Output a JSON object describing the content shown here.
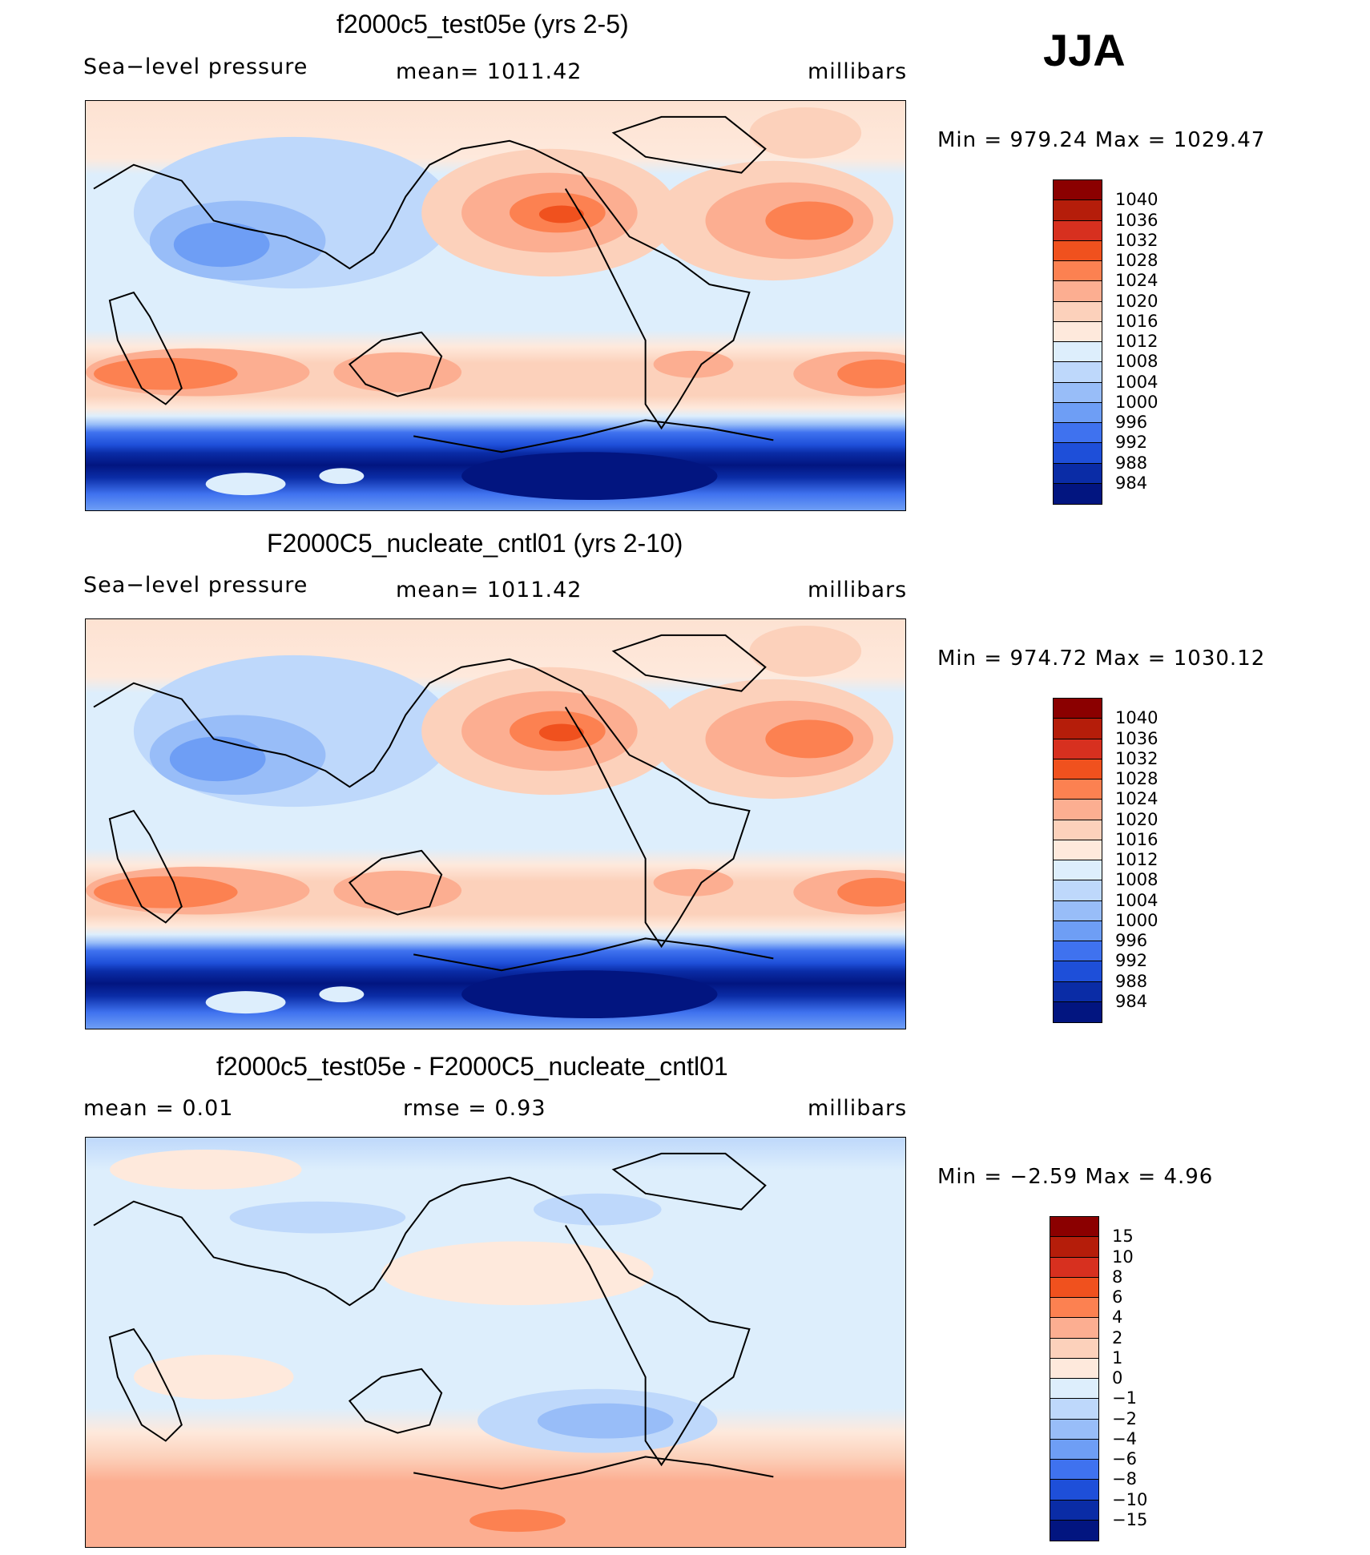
{
  "season": "JJA",
  "panels": [
    {
      "id": "test",
      "title": "f2000c5_test05e (yrs 2-5)",
      "left_label": "Sea−level pressure",
      "center_label": "mean=  1011.42",
      "units": "millibars",
      "minmax": "Min  =  979.24  Max  =  1029.47"
    },
    {
      "id": "control",
      "title": "F2000C5_nucleate_cntl01 (yrs 2-10)",
      "left_label": "Sea−level pressure",
      "center_label": "mean=  1011.42",
      "units": "millibars",
      "minmax": "Min  =  974.72  Max  =  1030.12"
    },
    {
      "id": "difference",
      "title": "f2000c5_test05e - F2000C5_nucleate_cntl01",
      "left_label": "mean  =      0.01",
      "center_label": "rmse  =      0.93",
      "units": "millibars",
      "minmax": "Min  =   −2.59  Max  =      4.96"
    }
  ],
  "colorbars": {
    "absolute": {
      "levels": [
        "1040",
        "1036",
        "1032",
        "1028",
        "1024",
        "1020",
        "1016",
        "1012",
        "1008",
        "1004",
        "1000",
        "996",
        "992",
        "988",
        "984"
      ],
      "colors": [
        "#8b0000",
        "#b51d0a",
        "#d7301f",
        "#f0511e",
        "#fc8151",
        "#fcae91",
        "#fcd1bb",
        "#fee9dc",
        "#ddeefc",
        "#bed8fb",
        "#98bdf8",
        "#6e9ef5",
        "#3f72ef",
        "#1e4fd9",
        "#0a2ca6",
        "#021580"
      ]
    },
    "difference": {
      "levels": [
        "15",
        "10",
        "8",
        "6",
        "4",
        "2",
        "1",
        "0",
        "−1",
        "−2",
        "−4",
        "−6",
        "−8",
        "−10",
        "−15"
      ],
      "colors": [
        "#8b0000",
        "#b51d0a",
        "#d7301f",
        "#f0511e",
        "#fc8151",
        "#fcae91",
        "#fcd1bb",
        "#fee9dc",
        "#ddeefc",
        "#bed8fb",
        "#98bdf8",
        "#6e9ef5",
        "#3f72ef",
        "#1e4fd9",
        "#0a2ca6",
        "#021580"
      ]
    }
  },
  "chart_data": [
    {
      "type": "heatmap",
      "title": "f2000c5_test05e (yrs 2-5)",
      "variable": "Sea−level pressure",
      "units": "millibars",
      "mean": 1011.42,
      "min": 979.24,
      "max": 1029.47,
      "contour_levels": [
        984,
        988,
        992,
        996,
        1000,
        1004,
        1008,
        1012,
        1016,
        1020,
        1024,
        1028,
        1032,
        1036,
        1040
      ]
    },
    {
      "type": "heatmap",
      "title": "F2000C5_nucleate_cntl01 (yrs 2-10)",
      "variable": "Sea−level pressure",
      "units": "millibars",
      "mean": 1011.42,
      "min": 974.72,
      "max": 1030.12,
      "contour_levels": [
        984,
        988,
        992,
        996,
        1000,
        1004,
        1008,
        1012,
        1016,
        1020,
        1024,
        1028,
        1032,
        1036,
        1040
      ]
    },
    {
      "type": "heatmap",
      "title": "f2000c5_test05e - F2000C5_nucleate_cntl01",
      "units": "millibars",
      "mean": 0.01,
      "rmse": 0.93,
      "min": -2.59,
      "max": 4.96,
      "contour_levels": [
        -15,
        -10,
        -8,
        -6,
        -4,
        -2,
        -1,
        0,
        1,
        2,
        4,
        6,
        8,
        10,
        15
      ]
    }
  ]
}
